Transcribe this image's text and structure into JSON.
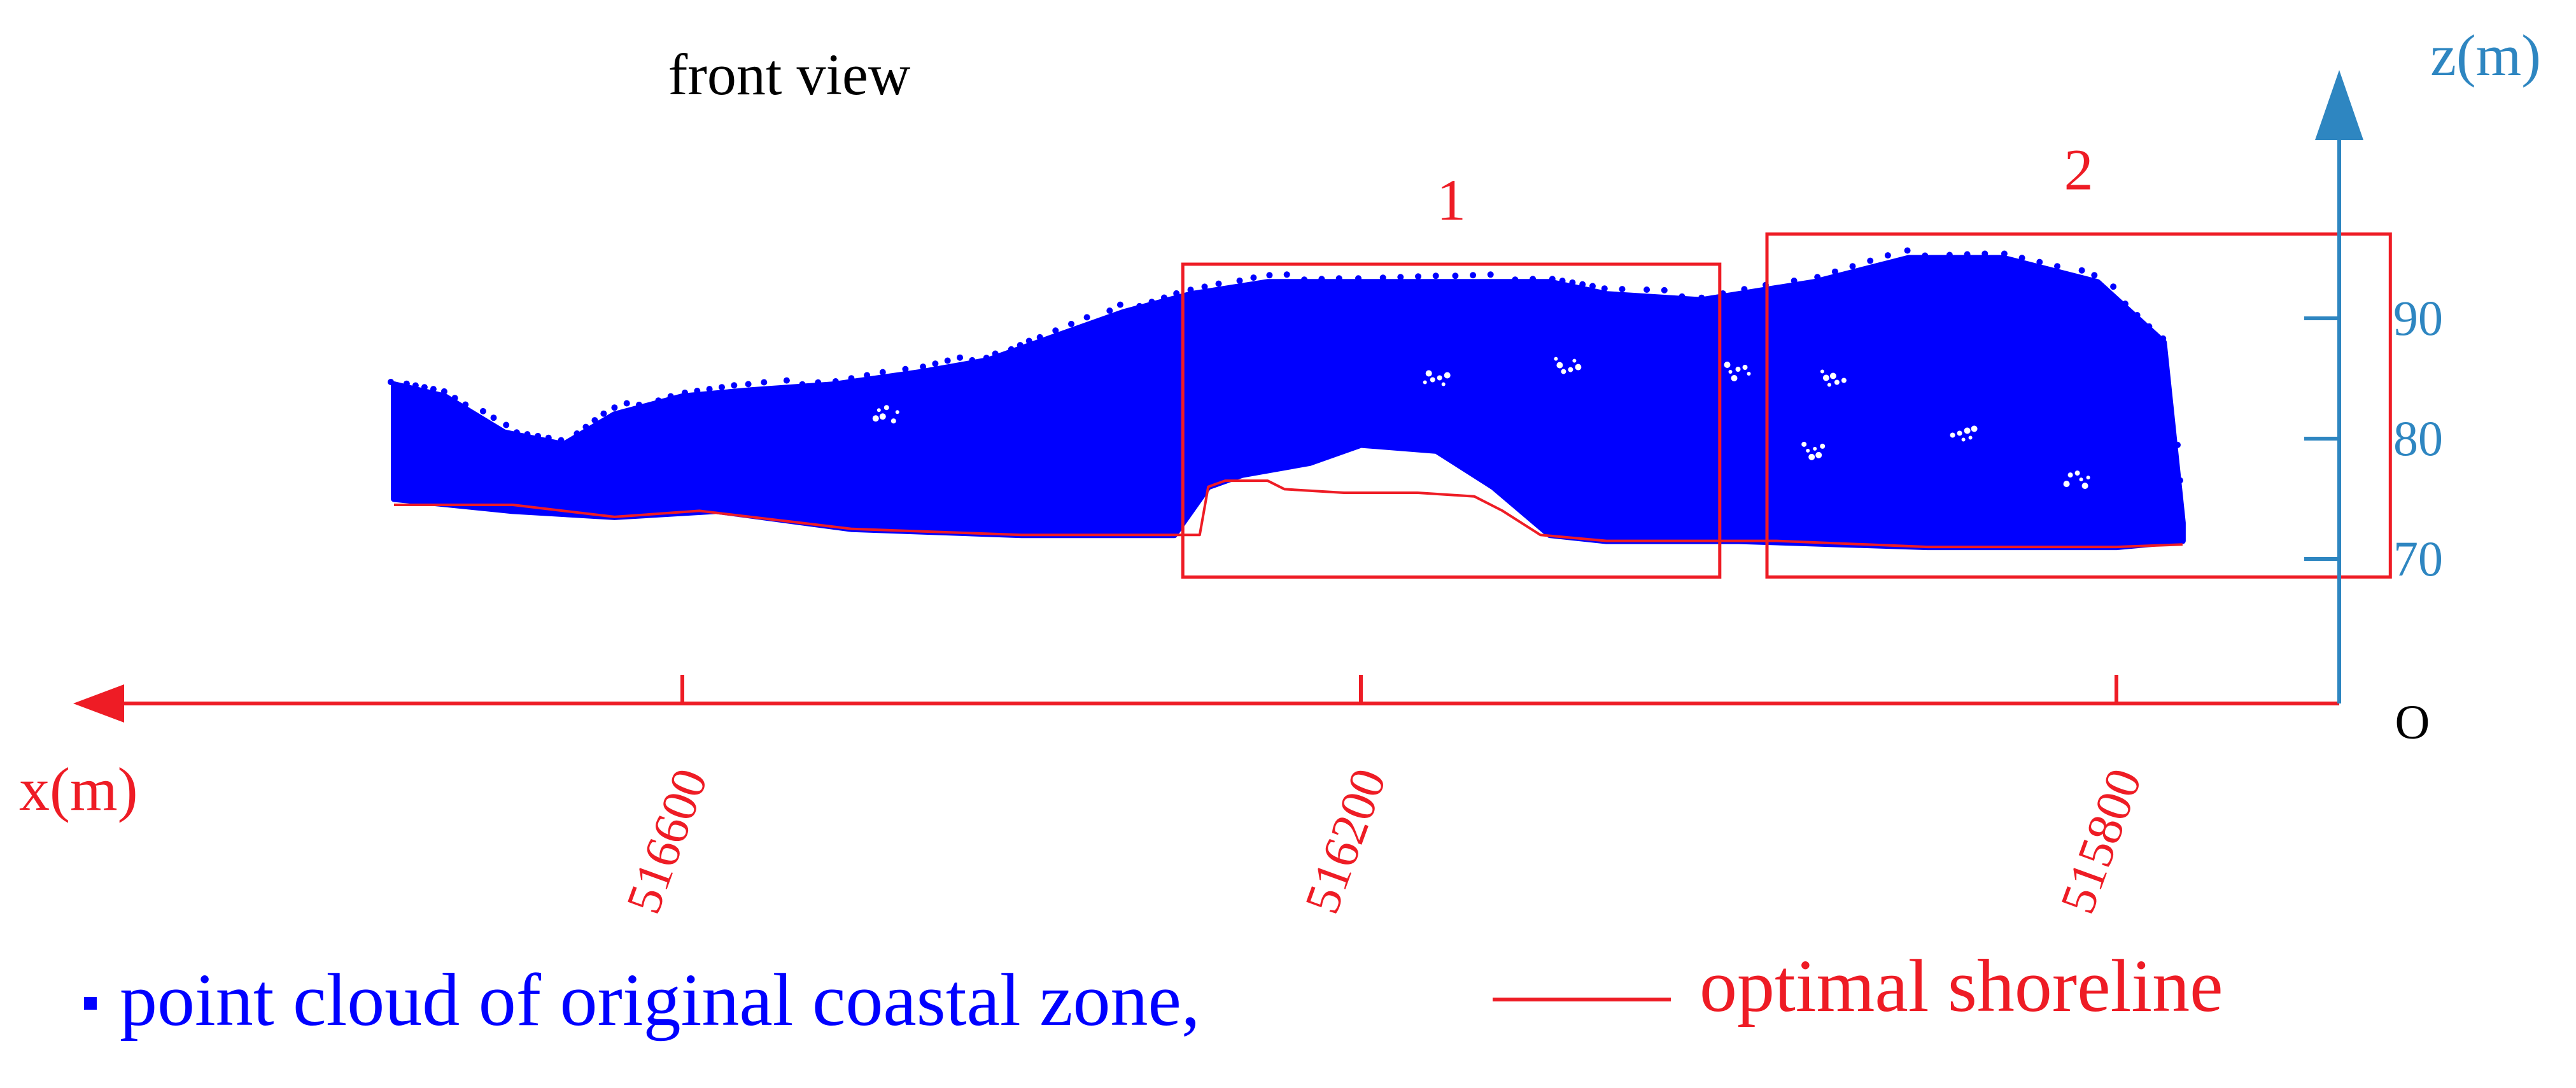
{
  "chart_data": {
    "type": "scatter",
    "view_title": "front view",
    "x_axis": {
      "label": "x(m)",
      "direction": "reversed",
      "ticks": [
        516600,
        516200,
        515800
      ],
      "tick_labels": [
        "516600",
        "516200",
        "515800"
      ],
      "color": "#ee1c25"
    },
    "z_axis": {
      "label": "z(m)",
      "ticks": [
        70,
        80,
        90
      ],
      "tick_labels": [
        "70",
        "80",
        "90"
      ],
      "color": "#2e86c1"
    },
    "origin_label": "O",
    "series": [
      {
        "name": "point cloud of original coastal zone,",
        "kind": "point-cloud",
        "color": "#0000ff",
        "top_profile": [
          [
            516770,
            84.5
          ],
          [
            516740,
            83.5
          ],
          [
            516705,
            80.5
          ],
          [
            516670,
            79.5
          ],
          [
            516640,
            82
          ],
          [
            516600,
            83.5
          ],
          [
            516560,
            84
          ],
          [
            516510,
            84.5
          ],
          [
            516460,
            85.5
          ],
          [
            516420,
            86.5
          ],
          [
            516390,
            88
          ],
          [
            516340,
            90.5
          ],
          [
            516300,
            92
          ],
          [
            516255,
            93
          ],
          [
            516200,
            93
          ],
          [
            516150,
            93
          ],
          [
            516100,
            93
          ],
          [
            516070,
            92
          ],
          [
            516020,
            91.5
          ],
          [
            515960,
            93
          ],
          [
            515910,
            95
          ],
          [
            515860,
            95
          ],
          [
            515810,
            93
          ],
          [
            515775,
            88
          ],
          [
            515765,
            73
          ]
        ],
        "bottom_profile": [
          [
            516770,
            75
          ],
          [
            516700,
            74
          ],
          [
            516640,
            73.5
          ],
          [
            516580,
            74
          ],
          [
            516500,
            72.5
          ],
          [
            516400,
            72
          ],
          [
            516340,
            72
          ],
          [
            516310,
            72
          ],
          [
            516290,
            76
          ],
          [
            516270,
            77
          ],
          [
            516230,
            78
          ],
          [
            516200,
            79.5
          ],
          [
            516160,
            79
          ],
          [
            516130,
            76
          ],
          [
            516100,
            72
          ],
          [
            516070,
            71.5
          ],
          [
            516000,
            71.5
          ],
          [
            515900,
            71
          ],
          [
            515800,
            71
          ],
          [
            515765,
            71.5
          ]
        ],
        "holes": [
          [
            516090,
            86
          ],
          [
            516000,
            85.5
          ],
          [
            515950,
            85
          ],
          [
            515960,
            79
          ],
          [
            515880,
            80.5
          ],
          [
            515820,
            76.5
          ],
          [
            516160,
            85
          ],
          [
            516480,
            82
          ]
        ]
      },
      {
        "name": "optimal shoreline",
        "kind": "line",
        "color": "#ee1c25",
        "points": [
          [
            516770,
            74.5
          ],
          [
            516700,
            74.5
          ],
          [
            516640,
            73.5
          ],
          [
            516590,
            74
          ],
          [
            516500,
            72.5
          ],
          [
            516400,
            72
          ],
          [
            516320,
            72
          ],
          [
            516295,
            72
          ],
          [
            516290,
            76
          ],
          [
            516280,
            76.5
          ],
          [
            516255,
            76.5
          ],
          [
            516245,
            75.8
          ],
          [
            516210,
            75.5
          ],
          [
            516170,
            75.5
          ],
          [
            516140,
            75.2
          ],
          [
            516125,
            74
          ],
          [
            516105,
            72
          ],
          [
            516070,
            71.5
          ],
          [
            515980,
            71.5
          ],
          [
            515900,
            71
          ],
          [
            515800,
            71
          ],
          [
            515765,
            71.2
          ]
        ]
      }
    ],
    "regions": [
      {
        "label": "1",
        "x_range": [
          516305,
          516010
        ],
        "z_range": [
          68.5,
          94.5
        ]
      },
      {
        "label": "2",
        "x_range": [
          515985,
          515655
        ],
        "z_range": [
          68.5,
          97
        ]
      }
    ],
    "legend": {
      "position": "bottom",
      "point_cloud_label": "point cloud of original coastal zone,",
      "shoreline_label": "optimal shoreline"
    }
  }
}
